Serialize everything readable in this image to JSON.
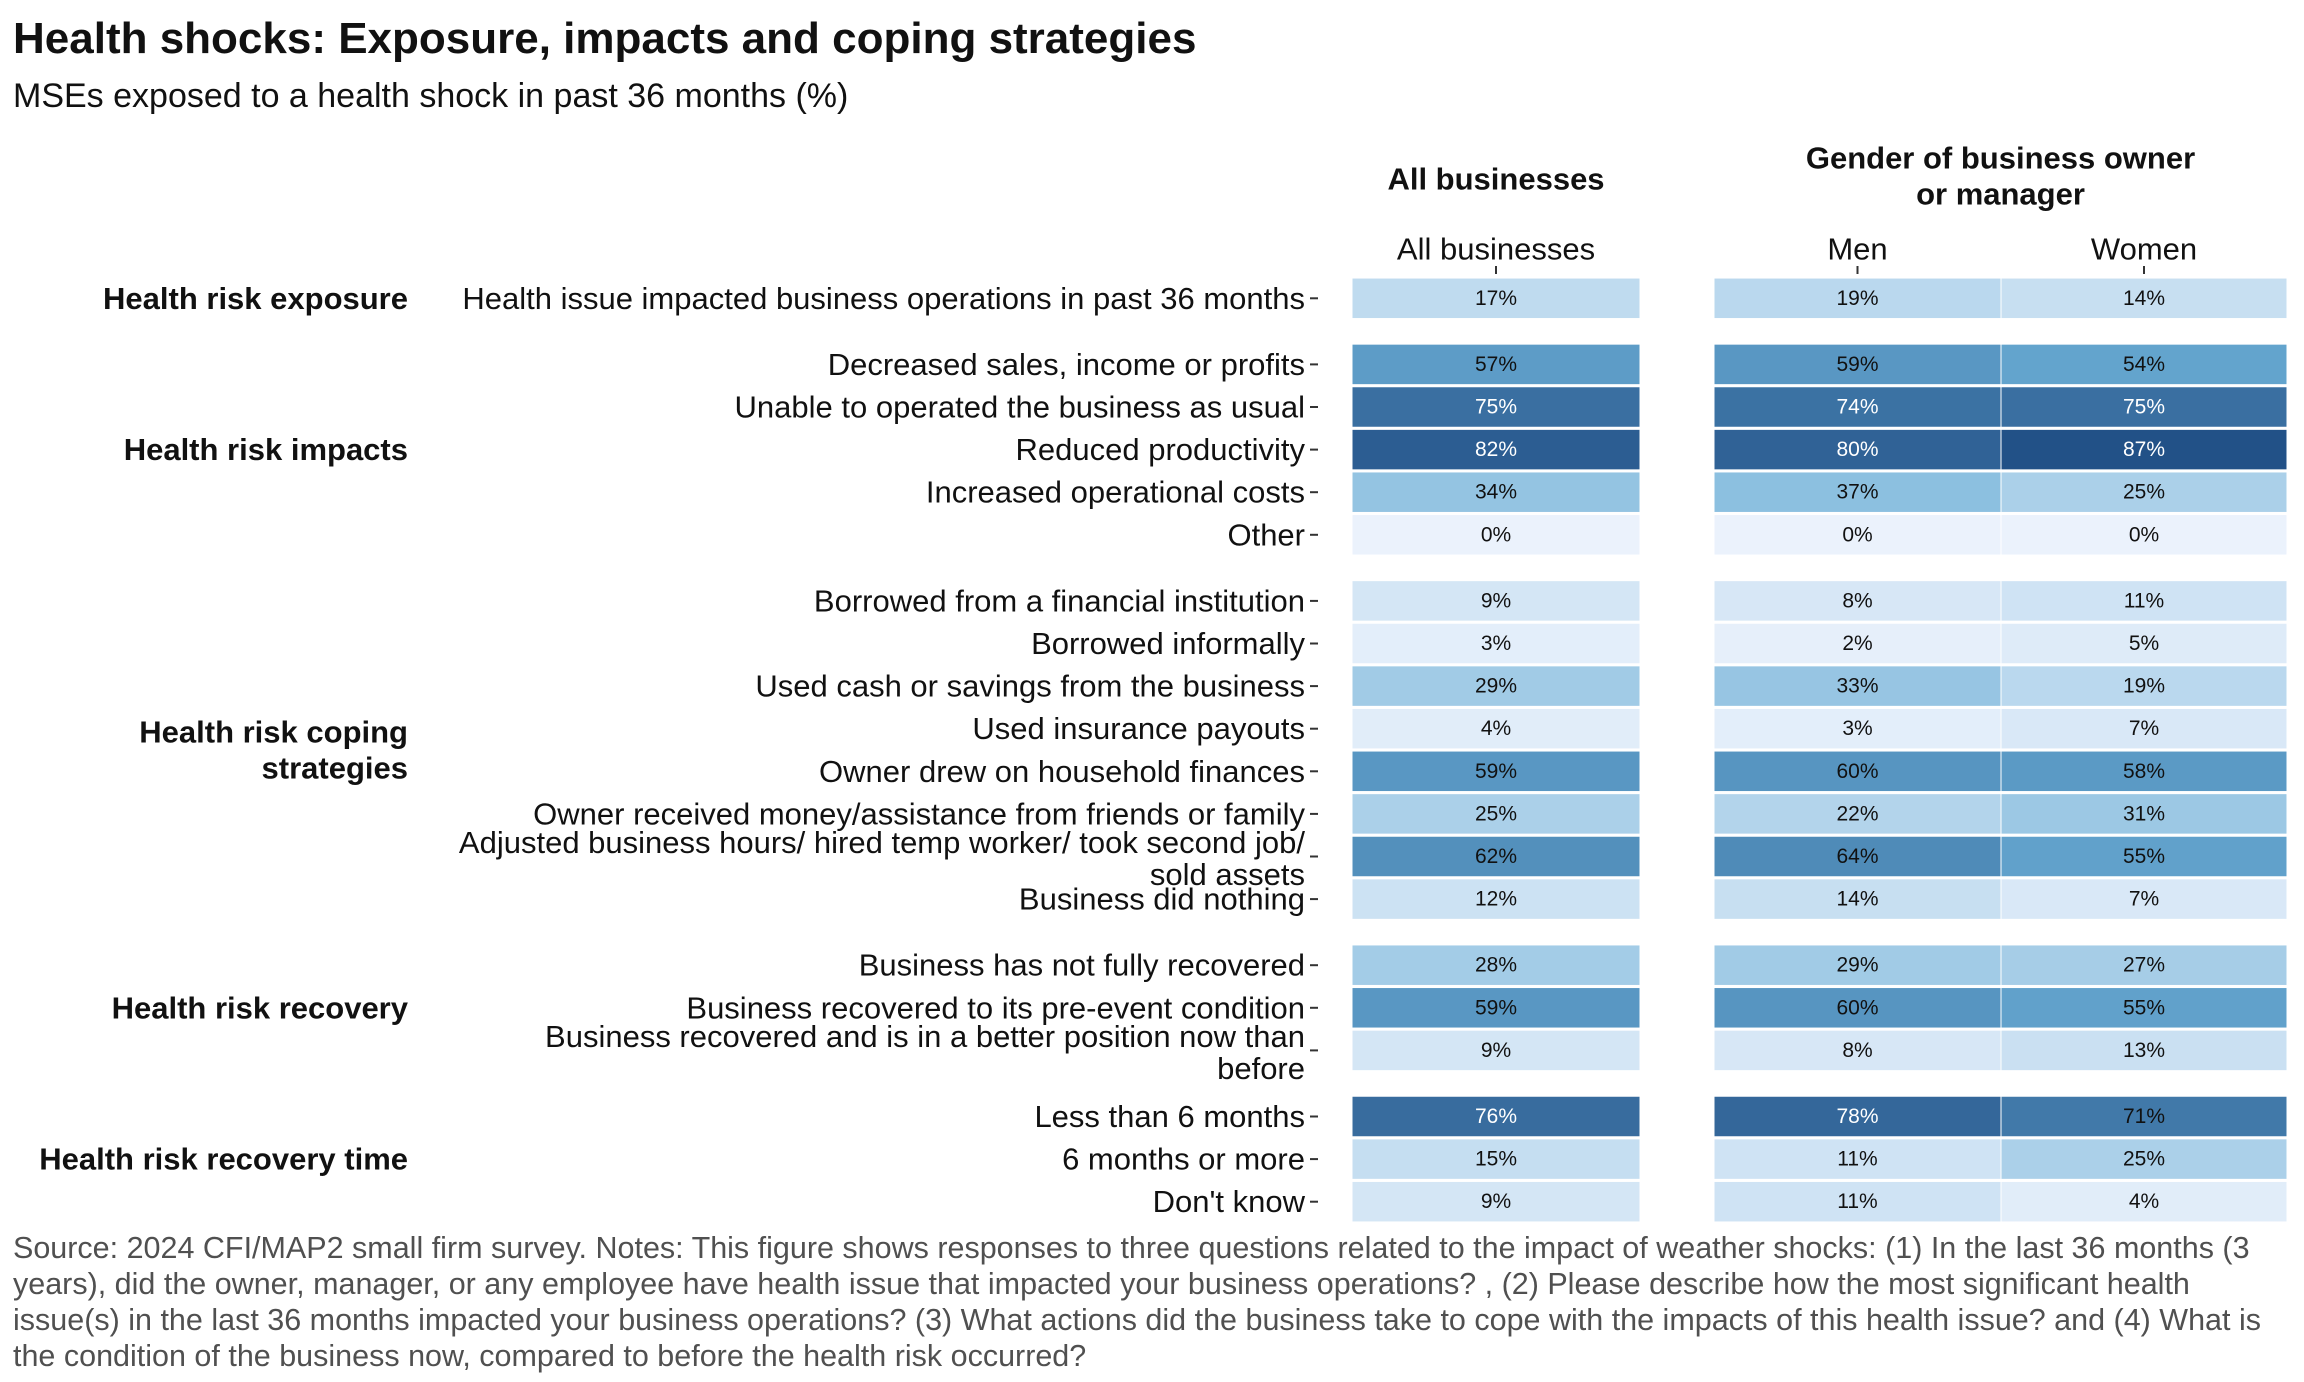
{
  "title": "Health shocks: Exposure, impacts and coping strategies",
  "subtitle": "MSEs exposed to a health shock in past 36 months (%)",
  "source_note": "Source: 2024 CFI/MAP2 small firm survey. Notes: This figure shows responses to three questions related to the impact of weather shocks: (1) In the last 36 months (3 years), did the owner, manager, or any employee have health issue that impacted your business operations? , (2) Please describe how the most significant health issue(s) in the last 36 months impacted your business operations? (3) What actions did the business take to cope with the impacts of this health issue? and (4) What is the condition of the business now, compared to before the health risk occurred?",
  "chart_data": {
    "type": "heatmap",
    "value_suffix": "%",
    "color_scale": {
      "low": "#f7fbff",
      "mid": "#6baed6",
      "high": "#08306b",
      "domain": [
        0,
        100
      ]
    },
    "panels": [
      {
        "header": [
          "All businesses"
        ],
        "columns": [
          "All businesses"
        ]
      },
      {
        "header": [
          "Gender of business owner",
          "or manager"
        ],
        "columns": [
          "Men",
          "Women"
        ]
      }
    ],
    "groups": [
      {
        "name": [
          "Health risk exposure"
        ],
        "rows": [
          {
            "label": [
              "Health issue impacted business operations in past 36 months"
            ],
            "values": [
              17,
              19,
              14
            ]
          }
        ]
      },
      {
        "name": [
          "Health risk impacts"
        ],
        "rows": [
          {
            "label": [
              "Decreased sales, income or profits"
            ],
            "values": [
              57,
              59,
              54
            ]
          },
          {
            "label": [
              "Unable to operated the business as usual"
            ],
            "values": [
              75,
              74,
              75
            ]
          },
          {
            "label": [
              "Reduced productivity"
            ],
            "values": [
              82,
              80,
              87
            ]
          },
          {
            "label": [
              "Increased operational costs"
            ],
            "values": [
              34,
              37,
              25
            ]
          },
          {
            "label": [
              "Other"
            ],
            "values": [
              0,
              0,
              0
            ]
          }
        ]
      },
      {
        "name": [
          "Health risk coping",
          "strategies"
        ],
        "rows": [
          {
            "label": [
              "Borrowed from a financial institution"
            ],
            "values": [
              9,
              8,
              11
            ]
          },
          {
            "label": [
              "Borrowed informally"
            ],
            "values": [
              3,
              2,
              5
            ]
          },
          {
            "label": [
              "Used cash or savings from the business"
            ],
            "values": [
              29,
              33,
              19
            ]
          },
          {
            "label": [
              "Used insurance payouts"
            ],
            "values": [
              4,
              3,
              7
            ]
          },
          {
            "label": [
              "Owner drew on household finances"
            ],
            "values": [
              59,
              60,
              58
            ]
          },
          {
            "label": [
              "Owner received money/assistance from friends or family"
            ],
            "values": [
              25,
              22,
              31
            ]
          },
          {
            "label": [
              "Adjusted business hours/ hired temp worker/ took second job/",
              "sold assets"
            ],
            "values": [
              62,
              64,
              55
            ]
          },
          {
            "label": [
              "Business did nothing"
            ],
            "values": [
              12,
              14,
              7
            ]
          }
        ]
      },
      {
        "name": [
          "Health risk recovery"
        ],
        "rows": [
          {
            "label": [
              "Business has not fully recovered"
            ],
            "values": [
              28,
              29,
              27
            ]
          },
          {
            "label": [
              "Business recovered to its pre-event condition"
            ],
            "values": [
              59,
              60,
              55
            ]
          },
          {
            "label": [
              "Business recovered and is in a better position now than",
              "before"
            ],
            "values": [
              9,
              8,
              13
            ]
          }
        ]
      },
      {
        "name": [
          "Health risk recovery time"
        ],
        "rows": [
          {
            "label": [
              "Less than 6 months"
            ],
            "values": [
              76,
              78,
              71
            ]
          },
          {
            "label": [
              "6 months or more"
            ],
            "values": [
              15,
              11,
              25
            ]
          },
          {
            "label": [
              "Don't know"
            ],
            "values": [
              9,
              11,
              4
            ]
          }
        ]
      }
    ]
  }
}
